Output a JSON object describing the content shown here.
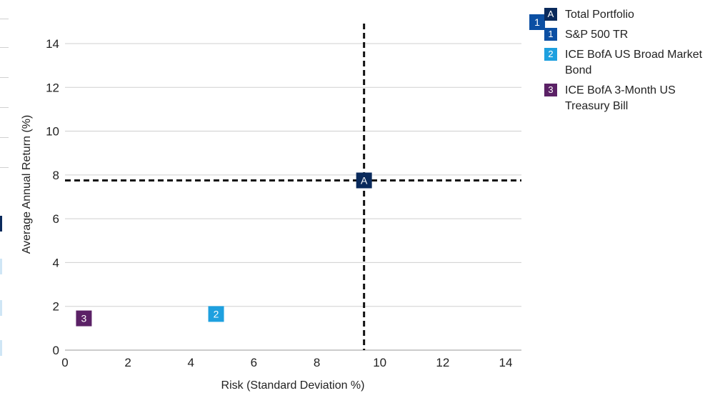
{
  "chart_data": {
    "type": "scatter",
    "xlabel": "Risk (Standard Deviation %)",
    "ylabel": "Average Annual Return (%)",
    "xlim": [
      0,
      14.5
    ],
    "ylim": [
      0,
      15.5
    ],
    "xticks": [
      0,
      2,
      4,
      6,
      8,
      10,
      12,
      14
    ],
    "yticks": [
      0,
      2,
      4,
      6,
      8,
      10,
      12,
      14
    ],
    "grid": "horizontal",
    "reference_lines": {
      "x": 9.5,
      "y": 7.75,
      "style": "dashed"
    },
    "legend_position": "top-right",
    "points": [
      {
        "marker": "A",
        "label": "Total Portfolio",
        "x": 9.5,
        "y": 7.75,
        "color": "#0a2a5c"
      },
      {
        "marker": "1",
        "label": "S&P 500 TR",
        "x": 15.0,
        "y": 15.4,
        "color": "#0b4fa3"
      },
      {
        "marker": "2",
        "label": "ICE BofA US Broad Market Bond",
        "x": 4.8,
        "y": 1.65,
        "color": "#1ea0df"
      },
      {
        "marker": "3",
        "label": "ICE BofA 3-Month US Treasury Bill",
        "x": 0.6,
        "y": 1.45,
        "color": "#5b2166"
      }
    ]
  },
  "legend": {
    "items": [
      {
        "marker": "A",
        "label_line1": "Total Portfolio",
        "label_line2": "",
        "color": "#0a2a5c"
      },
      {
        "marker": "1",
        "label_line1": "S&P 500 TR",
        "label_line2": "",
        "color": "#0b4fa3"
      },
      {
        "marker": "2",
        "label_line1": "ICE BofA US Broad Market",
        "label_line2": "Bond",
        "color": "#1ea0df"
      },
      {
        "marker": "3",
        "label_line1": "ICE BofA 3-Month US",
        "label_line2": "Treasury Bill",
        "color": "#5b2166"
      }
    ]
  }
}
